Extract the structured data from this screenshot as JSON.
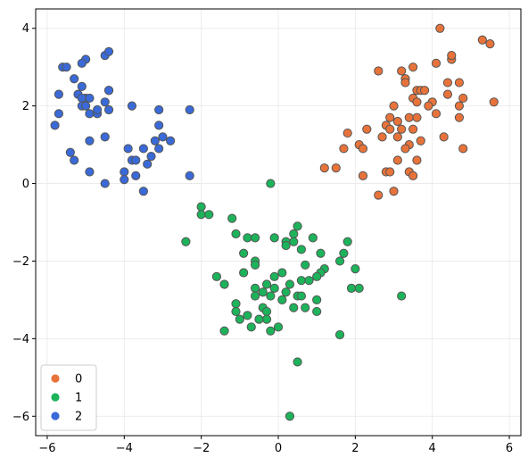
{
  "chart_data": {
    "type": "scatter",
    "title": "",
    "xlabel": "",
    "ylabel": "",
    "xlim": [
      -6.3,
      6.3
    ],
    "ylim": [
      -6.5,
      4.5
    ],
    "xticks": [
      -6,
      -4,
      -2,
      0,
      2,
      4,
      6
    ],
    "yticks": [
      -6,
      -4,
      -2,
      0,
      2,
      4
    ],
    "xtick_labels": [
      "−6",
      "−4",
      "−2",
      "0",
      "2",
      "4",
      "6"
    ],
    "ytick_labels": [
      "−6",
      "−4",
      "−2",
      "0",
      "2",
      "4"
    ],
    "grid": true,
    "legend_position": "lower-left",
    "marker_edge_color": "#555555",
    "series": [
      {
        "name": "0",
        "color": "#E8733A",
        "points": [
          [
            4.2,
            4.0
          ],
          [
            5.3,
            3.7
          ],
          [
            5.5,
            3.6
          ],
          [
            4.1,
            3.1
          ],
          [
            4.5,
            3.2
          ],
          [
            4.5,
            3.3
          ],
          [
            2.6,
            2.9
          ],
          [
            3.2,
            2.9
          ],
          [
            3.3,
            2.7
          ],
          [
            3.3,
            2.6
          ],
          [
            3.5,
            3.0
          ],
          [
            3.6,
            2.4
          ],
          [
            3.7,
            2.4
          ],
          [
            3.8,
            2.4
          ],
          [
            3.5,
            2.2
          ],
          [
            3.6,
            2.1
          ],
          [
            4.0,
            2.1
          ],
          [
            3.9,
            2.0
          ],
          [
            4.4,
            2.6
          ],
          [
            4.4,
            2.3
          ],
          [
            4.7,
            2.6
          ],
          [
            4.8,
            2.2
          ],
          [
            4.7,
            2.0
          ],
          [
            5.6,
            2.1
          ],
          [
            3.0,
            2.0
          ],
          [
            2.9,
            1.7
          ],
          [
            2.8,
            1.5
          ],
          [
            3.1,
            1.6
          ],
          [
            3.4,
            1.7
          ],
          [
            3.6,
            1.7
          ],
          [
            4.1,
            1.8
          ],
          [
            4.7,
            1.7
          ],
          [
            1.8,
            1.3
          ],
          [
            2.3,
            1.4
          ],
          [
            2.9,
            1.4
          ],
          [
            3.2,
            1.4
          ],
          [
            3.5,
            1.4
          ],
          [
            2.7,
            1.2
          ],
          [
            3.1,
            1.2
          ],
          [
            2.1,
            1.0
          ],
          [
            2.2,
            0.9
          ],
          [
            3.4,
            1.0
          ],
          [
            3.7,
            1.1
          ],
          [
            4.3,
            1.2
          ],
          [
            1.7,
            0.9
          ],
          [
            3.3,
            0.9
          ],
          [
            4.8,
            0.9
          ],
          [
            3.1,
            0.6
          ],
          [
            3.6,
            0.6
          ],
          [
            1.2,
            0.4
          ],
          [
            1.5,
            0.4
          ],
          [
            2.8,
            0.3
          ],
          [
            2.9,
            0.3
          ],
          [
            3.4,
            0.3
          ],
          [
            3.5,
            0.2
          ],
          [
            2.2,
            0.2
          ],
          [
            3.0,
            -0.2
          ],
          [
            2.6,
            -0.3
          ]
        ]
      },
      {
        "name": "1",
        "color": "#1DB35A",
        "points": [
          [
            -0.2,
            0.0
          ],
          [
            -2.0,
            -0.6
          ],
          [
            -2.0,
            -0.8
          ],
          [
            -1.8,
            -0.8
          ],
          [
            -1.2,
            -0.9
          ],
          [
            0.5,
            -1.1
          ],
          [
            -1.1,
            -1.3
          ],
          [
            0.4,
            -1.3
          ],
          [
            -0.8,
            -1.4
          ],
          [
            -0.6,
            -1.4
          ],
          [
            -0.1,
            -1.4
          ],
          [
            0.2,
            -1.5
          ],
          [
            0.4,
            -1.5
          ],
          [
            0.9,
            -1.4
          ],
          [
            -2.4,
            -1.5
          ],
          [
            1.8,
            -1.5
          ],
          [
            -0.9,
            -1.8
          ],
          [
            0.2,
            -1.6
          ],
          [
            0.6,
            -1.7
          ],
          [
            1.1,
            -1.8
          ],
          [
            1.7,
            -1.8
          ],
          [
            -0.6,
            -2.0
          ],
          [
            1.6,
            -2.0
          ],
          [
            -0.6,
            -2.1
          ],
          [
            0.7,
            -2.1
          ],
          [
            1.2,
            -2.2
          ],
          [
            2.0,
            -2.2
          ],
          [
            -0.9,
            -2.3
          ],
          [
            0.1,
            -2.3
          ],
          [
            1.1,
            -2.3
          ],
          [
            -1.6,
            -2.4
          ],
          [
            -0.1,
            -2.4
          ],
          [
            0.6,
            -2.5
          ],
          [
            0.8,
            -2.5
          ],
          [
            1.0,
            -2.4
          ],
          [
            -1.4,
            -2.6
          ],
          [
            -0.3,
            -2.6
          ],
          [
            0.3,
            -2.6
          ],
          [
            -0.6,
            -2.7
          ],
          [
            -0.1,
            -2.7
          ],
          [
            0.2,
            -2.8
          ],
          [
            1.9,
            -2.7
          ],
          [
            2.1,
            -2.7
          ],
          [
            -0.4,
            -2.8
          ],
          [
            -0.6,
            -2.9
          ],
          [
            0.5,
            -2.9
          ],
          [
            0.6,
            -2.9
          ],
          [
            -0.2,
            -2.9
          ],
          [
            0.1,
            -3.0
          ],
          [
            1.0,
            -3.0
          ],
          [
            3.2,
            -2.9
          ],
          [
            -1.1,
            -3.1
          ],
          [
            -0.4,
            -3.2
          ],
          [
            0.4,
            -3.2
          ],
          [
            0.7,
            -3.2
          ],
          [
            1.0,
            -3.3
          ],
          [
            -1.1,
            -3.3
          ],
          [
            -0.8,
            -3.4
          ],
          [
            -0.3,
            -3.3
          ],
          [
            -1.0,
            -3.5
          ],
          [
            -0.3,
            -3.5
          ],
          [
            -0.7,
            -3.7
          ],
          [
            -0.5,
            -3.5
          ],
          [
            -0.2,
            -3.8
          ],
          [
            0.0,
            -3.7
          ],
          [
            -1.4,
            -3.8
          ],
          [
            1.6,
            -3.9
          ],
          [
            0.5,
            -4.6
          ],
          [
            0.3,
            -6.0
          ]
        ]
      },
      {
        "name": "2",
        "color": "#3A6AD8",
        "points": [
          [
            -5.6,
            3.0
          ],
          [
            -5.5,
            3.0
          ],
          [
            -5.0,
            3.2
          ],
          [
            -5.1,
            3.1
          ],
          [
            -4.5,
            3.3
          ],
          [
            -4.4,
            3.4
          ],
          [
            -5.3,
            2.7
          ],
          [
            -5.1,
            2.5
          ],
          [
            -5.7,
            2.3
          ],
          [
            -5.2,
            2.3
          ],
          [
            -5.0,
            2.2
          ],
          [
            -5.1,
            2.2
          ],
          [
            -4.9,
            2.2
          ],
          [
            -4.4,
            2.4
          ],
          [
            -4.4,
            2.4
          ],
          [
            -5.1,
            2.0
          ],
          [
            -5.0,
            2.0
          ],
          [
            -4.5,
            2.1
          ],
          [
            -3.8,
            2.0
          ],
          [
            -3.1,
            1.9
          ],
          [
            -2.3,
            1.9
          ],
          [
            -5.7,
            1.8
          ],
          [
            -4.9,
            1.8
          ],
          [
            -4.7,
            1.8
          ],
          [
            -4.7,
            1.9
          ],
          [
            -4.4,
            1.9
          ],
          [
            -5.8,
            1.5
          ],
          [
            -3.1,
            1.5
          ],
          [
            -3.0,
            1.2
          ],
          [
            -4.9,
            1.1
          ],
          [
            -4.5,
            1.2
          ],
          [
            -3.2,
            1.1
          ],
          [
            -2.8,
            1.1
          ],
          [
            -3.9,
            0.9
          ],
          [
            -3.5,
            0.9
          ],
          [
            -3.1,
            0.9
          ],
          [
            -5.4,
            0.8
          ],
          [
            -5.3,
            0.6
          ],
          [
            -3.3,
            0.7
          ],
          [
            -3.8,
            0.6
          ],
          [
            -3.7,
            0.6
          ],
          [
            -3.4,
            0.5
          ],
          [
            -4.0,
            0.3
          ],
          [
            -3.7,
            0.2
          ],
          [
            -4.9,
            0.3
          ],
          [
            -4.0,
            0.1
          ],
          [
            -2.3,
            0.2
          ],
          [
            -4.5,
            0.0
          ],
          [
            -3.5,
            -0.2
          ]
        ]
      }
    ]
  }
}
